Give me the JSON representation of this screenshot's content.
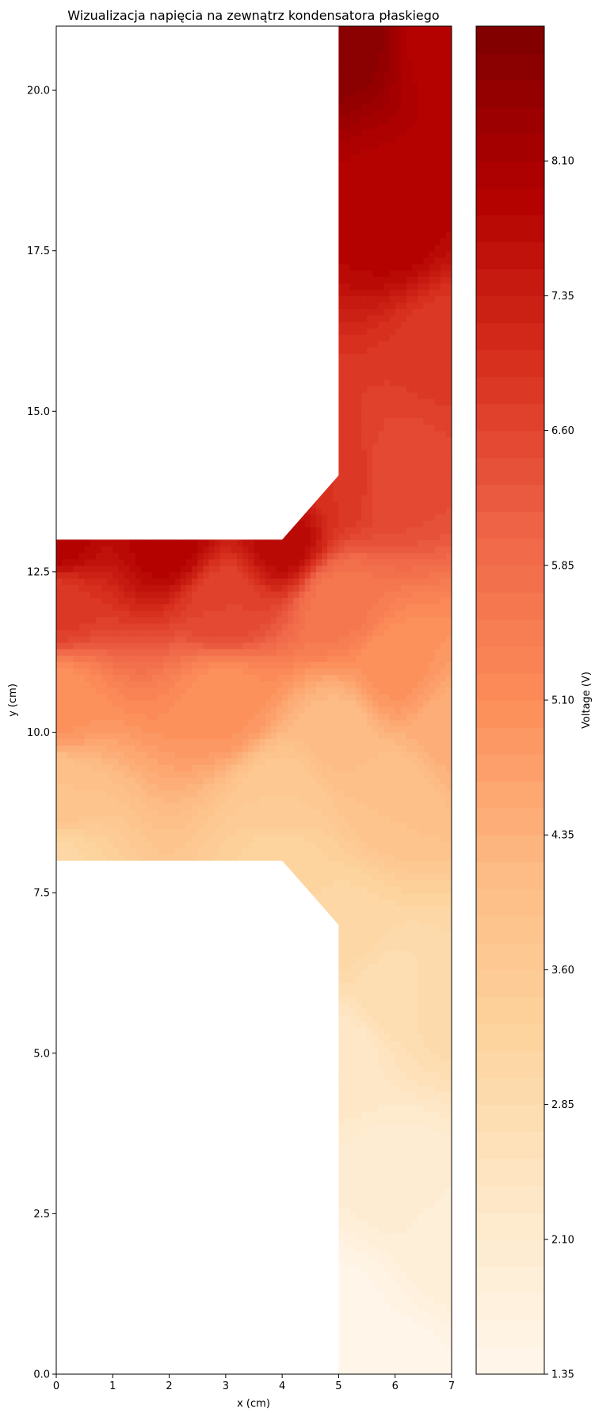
{
  "chart_data": {
    "type": "heatmap",
    "subtype": "filled-contour",
    "title": "Wizualizacja napięcia na zewnątrz kondensatora płaskiego",
    "xlabel": "x (cm)",
    "ylabel": "y (cm)",
    "xlim": [
      0,
      7
    ],
    "ylim": [
      0,
      21
    ],
    "xticks": [
      "0",
      "1",
      "2",
      "3",
      "4",
      "5",
      "6",
      "7"
    ],
    "yticks": [
      "0.0",
      "2.5",
      "5.0",
      "7.5",
      "10.0",
      "12.5",
      "15.0",
      "17.5",
      "20.0"
    ],
    "colormap": "OrRd",
    "colorbar": {
      "label": "Voltage (V)",
      "min": 1.35,
      "max": 8.85,
      "levels": 50,
      "ticks": [
        "1.35",
        "2.10",
        "2.85",
        "3.60",
        "4.35",
        "5.10",
        "5.85",
        "6.60",
        "7.35",
        "8.10"
      ]
    },
    "domain_polygon": [
      [
        0,
        8
      ],
      [
        4,
        8
      ],
      [
        5,
        7
      ],
      [
        5,
        0
      ],
      [
        7,
        0
      ],
      [
        7,
        21
      ],
      [
        5,
        21
      ],
      [
        5,
        14
      ],
      [
        4,
        13
      ],
      [
        0,
        13
      ]
    ],
    "values_at_points": [
      {
        "x": 0,
        "y": 13,
        "v": 7.9
      },
      {
        "x": 2,
        "y": 13,
        "v": 7.9
      },
      {
        "x": 4,
        "y": 13,
        "v": 7.75
      },
      {
        "x": 0,
        "y": 12,
        "v": 6.8
      },
      {
        "x": 3,
        "y": 12,
        "v": 6.6
      },
      {
        "x": 0,
        "y": 10.5,
        "v": 5.0
      },
      {
        "x": 3,
        "y": 10.5,
        "v": 5.0
      },
      {
        "x": 0,
        "y": 9,
        "v": 3.9
      },
      {
        "x": 4,
        "y": 9,
        "v": 3.6
      },
      {
        "x": 0,
        "y": 8,
        "v": 3.1
      },
      {
        "x": 4,
        "y": 8,
        "v": 3.2
      },
      {
        "x": 5,
        "y": 14,
        "v": 6.9
      },
      {
        "x": 5,
        "y": 12,
        "v": 5.6
      },
      {
        "x": 5,
        "y": 10,
        "v": 4.1
      },
      {
        "x": 5,
        "y": 7,
        "v": 3.1
      },
      {
        "x": 6,
        "y": 14,
        "v": 6.5
      },
      {
        "x": 6,
        "y": 11,
        "v": 5.0
      },
      {
        "x": 6,
        "y": 9,
        "v": 3.9
      },
      {
        "x": 5,
        "y": 21,
        "v": 8.7
      },
      {
        "x": 6,
        "y": 18,
        "v": 7.9
      },
      {
        "x": 7,
        "y": 21,
        "v": 7.8
      },
      {
        "x": 7,
        "y": 16,
        "v": 6.8
      },
      {
        "x": 7,
        "y": 10,
        "v": 4.4
      },
      {
        "x": 7,
        "y": 6,
        "v": 3.0
      },
      {
        "x": 6,
        "y": 6,
        "v": 2.8
      },
      {
        "x": 5,
        "y": 5,
        "v": 2.3
      },
      {
        "x": 6,
        "y": 3,
        "v": 2.0
      },
      {
        "x": 7,
        "y": 2,
        "v": 1.9
      },
      {
        "x": 5,
        "y": 1,
        "v": 1.45
      },
      {
        "x": 6,
        "y": 0,
        "v": 1.4
      }
    ]
  }
}
